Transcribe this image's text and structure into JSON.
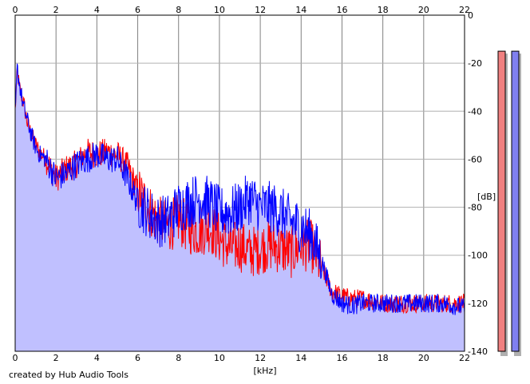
{
  "credit": "created by Hub Audio Tools",
  "chart_data": {
    "type": "area",
    "title": "",
    "xlabel": "[kHz]",
    "ylabel": "[dB]",
    "xlim": [
      0,
      22
    ],
    "ylim": [
      -140,
      0
    ],
    "x_ticks": [
      "0",
      "2",
      "4",
      "6",
      "8",
      "10",
      "12",
      "14",
      "16",
      "18",
      "20",
      "22"
    ],
    "y_ticks": [
      "0",
      "-20",
      "-40",
      "-60",
      "-80",
      "-100",
      "-120",
      "-140"
    ],
    "grid": true,
    "colors": {
      "left": "#ff0000",
      "right": "#0000ff",
      "fill": "#c0c0ff",
      "grid": "#808080"
    },
    "x": [
      0,
      0.1,
      0.2,
      0.4,
      0.6,
      0.8,
      1.0,
      1.2,
      1.5,
      2.0,
      2.5,
      3.0,
      3.5,
      4.0,
      4.5,
      5.0,
      5.5,
      6.0,
      6.5,
      7.0,
      7.5,
      8.0,
      8.5,
      9.0,
      9.5,
      10.0,
      10.5,
      11.0,
      11.5,
      12.0,
      12.5,
      13.0,
      13.5,
      14.0,
      14.5,
      15.0,
      15.5,
      16.0,
      16.5,
      17.0,
      18.0,
      19.0,
      20.0,
      21.0,
      22.0
    ],
    "series": [
      {
        "values": [
          -40,
          -23,
          -30,
          -36,
          -45,
          -50,
          -54,
          -57,
          -60,
          -68,
          -64,
          -62,
          -57,
          -58,
          -57,
          -58,
          -63,
          -73,
          -80,
          -86,
          -88,
          -85,
          -89,
          -90,
          -88,
          -93,
          -97,
          -96,
          -99,
          -97,
          -96,
          -97,
          -99,
          -96,
          -96,
          -105,
          -115,
          -117,
          -118,
          -118,
          -120,
          -120,
          -120,
          -120,
          -120
        ]
      },
      {
        "values": [
          -42,
          -22,
          -28,
          -38,
          -44,
          -50,
          -55,
          -58,
          -60,
          -68,
          -66,
          -62,
          -60,
          -58,
          -60,
          -60,
          -68,
          -78,
          -82,
          -86,
          -85,
          -80,
          -78,
          -76,
          -78,
          -82,
          -82,
          -80,
          -76,
          -80,
          -80,
          -82,
          -86,
          -88,
          -92,
          -102,
          -116,
          -120,
          -121,
          -120,
          -120,
          -120,
          -120,
          -120,
          -122
        ]
      }
    ],
    "meters": [
      -15,
      -15
    ]
  }
}
